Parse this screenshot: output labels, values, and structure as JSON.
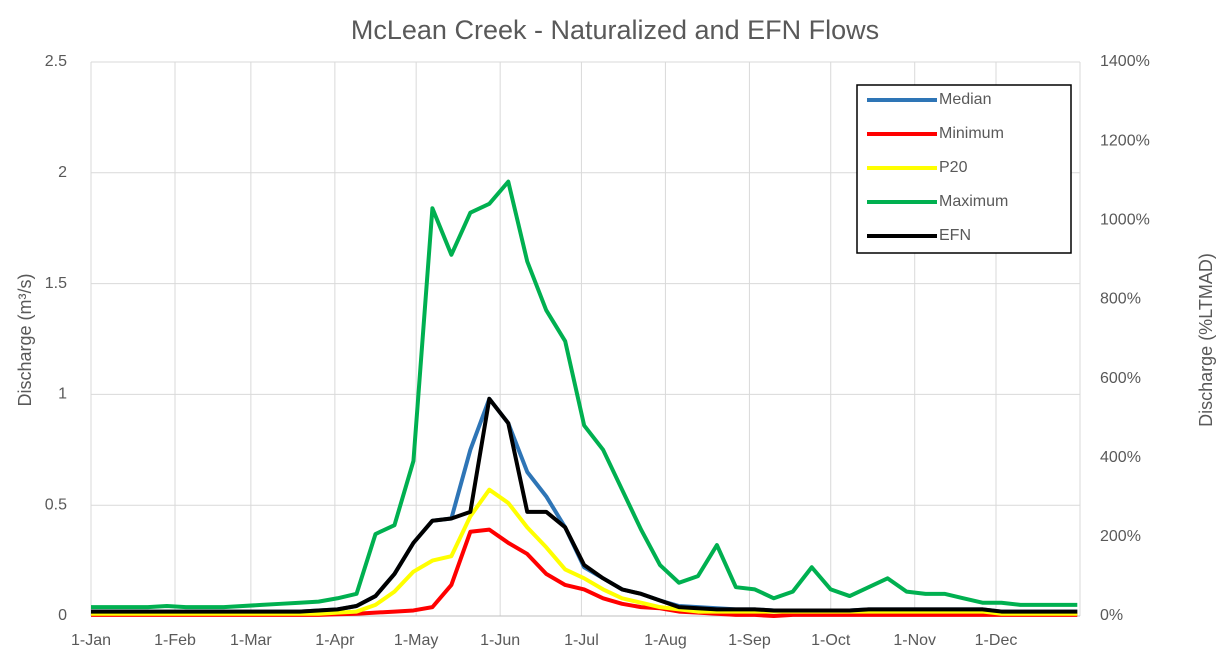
{
  "chart_data": {
    "type": "line",
    "title": "McLean Creek - Naturalized and EFN Flows",
    "y_label": "Discharge (m³/s)",
    "y2_label": "Discharge (%LTMAD)",
    "x": [
      1,
      8,
      15,
      22,
      29,
      36,
      43,
      50,
      57,
      64,
      71,
      78,
      85,
      92,
      99,
      106,
      113,
      120,
      127,
      134,
      141,
      148,
      155,
      162,
      169,
      176,
      183,
      190,
      197,
      204,
      211,
      218,
      225,
      232,
      239,
      246,
      253,
      260,
      267,
      274,
      281,
      288,
      295,
      302,
      309,
      316,
      323,
      330,
      337,
      344,
      351,
      358,
      365
    ],
    "xlim": [
      1,
      366
    ],
    "xticks": [
      {
        "value": 1,
        "label": "1-Jan"
      },
      {
        "value": 32,
        "label": "1-Feb"
      },
      {
        "value": 60,
        "label": "1-Mar"
      },
      {
        "value": 91,
        "label": "1-Apr"
      },
      {
        "value": 121,
        "label": "1-May"
      },
      {
        "value": 152,
        "label": "1-Jun"
      },
      {
        "value": 182,
        "label": "1-Jul"
      },
      {
        "value": 213,
        "label": "1-Aug"
      },
      {
        "value": 244,
        "label": "1-Sep"
      },
      {
        "value": 274,
        "label": "1-Oct"
      },
      {
        "value": 305,
        "label": "1-Nov"
      },
      {
        "value": 335,
        "label": "1-Dec"
      }
    ],
    "ylim": [
      0,
      2.5
    ],
    "yticks": [
      0,
      0.5,
      1,
      1.5,
      2,
      2.5
    ],
    "y2lim": [
      0,
      1400
    ],
    "y2ticks": [
      {
        "value": 0,
        "label": "0%"
      },
      {
        "value": 200,
        "label": "200%"
      },
      {
        "value": 400,
        "label": "400%"
      },
      {
        "value": 600,
        "label": "600%"
      },
      {
        "value": 800,
        "label": "800%"
      },
      {
        "value": 1000,
        "label": "1000%"
      },
      {
        "value": 1200,
        "label": "1200%"
      },
      {
        "value": 1400,
        "label": "1400%"
      }
    ],
    "grid": true,
    "legend": "upper right",
    "series": [
      {
        "name": "Median",
        "color": "#2e75b6",
        "values": [
          0.02,
          0.02,
          0.02,
          0.02,
          0.02,
          0.02,
          0.02,
          0.02,
          0.02,
          0.02,
          0.02,
          0.02,
          0.025,
          0.03,
          0.045,
          0.09,
          0.19,
          0.33,
          0.43,
          0.44,
          0.75,
          0.98,
          0.87,
          0.65,
          0.54,
          0.4,
          0.22,
          0.17,
          0.12,
          0.1,
          0.07,
          0.045,
          0.04,
          0.035,
          0.03,
          0.03,
          0.025,
          0.025,
          0.025,
          0.025,
          0.025,
          0.03,
          0.03,
          0.03,
          0.03,
          0.03,
          0.03,
          0.03,
          0.02,
          0.02,
          0.02,
          0.02,
          0.02
        ]
      },
      {
        "name": "Minimum",
        "color": "#ff0000",
        "values": [
          0.005,
          0.005,
          0.005,
          0.005,
          0.005,
          0.005,
          0.005,
          0.005,
          0.005,
          0.005,
          0.005,
          0.005,
          0.005,
          0.008,
          0.01,
          0.015,
          0.02,
          0.025,
          0.04,
          0.14,
          0.38,
          0.39,
          0.33,
          0.28,
          0.19,
          0.14,
          0.12,
          0.08,
          0.055,
          0.04,
          0.035,
          0.02,
          0.015,
          0.01,
          0.005,
          0.005,
          0,
          0.005,
          0.005,
          0.005,
          0.005,
          0.005,
          0.005,
          0.005,
          0.005,
          0.005,
          0.005,
          0.005,
          0.005,
          0.005,
          0.005,
          0.005,
          0.005
        ]
      },
      {
        "name": "P20",
        "color": "#ffff00",
        "values": [
          0.01,
          0.01,
          0.01,
          0.01,
          0.01,
          0.01,
          0.01,
          0.01,
          0.01,
          0.01,
          0.01,
          0.01,
          0.01,
          0.015,
          0.02,
          0.05,
          0.11,
          0.2,
          0.25,
          0.27,
          0.45,
          0.57,
          0.51,
          0.4,
          0.31,
          0.21,
          0.17,
          0.12,
          0.08,
          0.06,
          0.04,
          0.03,
          0.02,
          0.02,
          0.02,
          0.02,
          0.02,
          0.02,
          0.02,
          0.02,
          0.02,
          0.02,
          0.02,
          0.02,
          0.02,
          0.02,
          0.02,
          0.02,
          0.01,
          0.01,
          0.01,
          0.01,
          0.01
        ]
      },
      {
        "name": "Maximum",
        "color": "#00b050",
        "values": [
          0.04,
          0.04,
          0.04,
          0.04,
          0.045,
          0.04,
          0.04,
          0.04,
          0.045,
          0.05,
          0.055,
          0.06,
          0.065,
          0.08,
          0.1,
          0.37,
          0.41,
          0.7,
          1.84,
          1.63,
          1.82,
          1.86,
          1.96,
          1.6,
          1.38,
          1.24,
          0.86,
          0.75,
          0.57,
          0.39,
          0.23,
          0.15,
          0.18,
          0.32,
          0.13,
          0.12,
          0.08,
          0.11,
          0.22,
          0.12,
          0.09,
          0.13,
          0.17,
          0.11,
          0.1,
          0.1,
          0.08,
          0.06,
          0.06,
          0.05,
          0.05,
          0.05,
          0.05
        ]
      },
      {
        "name": "EFN",
        "color": "#000000",
        "values": [
          0.02,
          0.02,
          0.02,
          0.02,
          0.02,
          0.02,
          0.02,
          0.02,
          0.02,
          0.02,
          0.02,
          0.02,
          0.025,
          0.03,
          0.045,
          0.09,
          0.19,
          0.33,
          0.43,
          0.44,
          0.47,
          0.98,
          0.87,
          0.47,
          0.47,
          0.4,
          0.23,
          0.17,
          0.12,
          0.1,
          0.07,
          0.04,
          0.035,
          0.03,
          0.03,
          0.03,
          0.025,
          0.025,
          0.025,
          0.025,
          0.025,
          0.03,
          0.03,
          0.03,
          0.03,
          0.03,
          0.03,
          0.03,
          0.02,
          0.02,
          0.02,
          0.02,
          0.02
        ]
      }
    ]
  }
}
